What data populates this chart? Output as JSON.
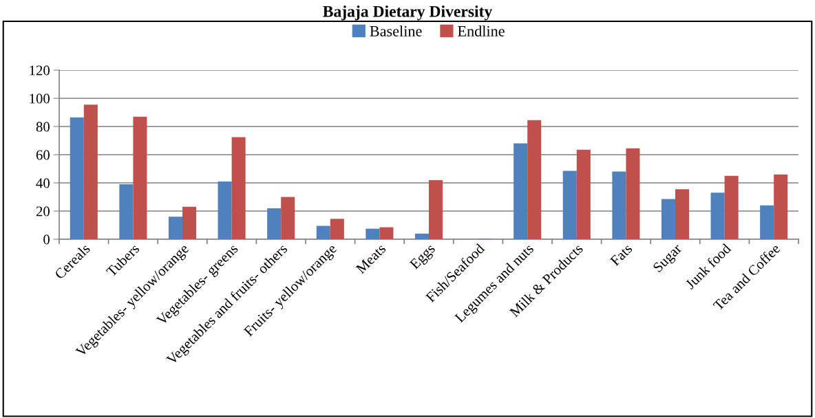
{
  "chart_data": {
    "type": "bar",
    "title": "Bajaja Dietary Diversity",
    "categories": [
      "Cereals",
      "Tubers",
      "Vegetables- yellow/orange",
      "Vegetables- greens",
      "Vegetables and fruits- others",
      "Fruits- yellow/orange",
      "Meats",
      "Eggs",
      "Fish/Seafood",
      "Legumes and nuts",
      "Milk & Products",
      "Fats",
      "Sugar",
      "Junk food",
      "Tea and Coffee"
    ],
    "series": [
      {
        "name": "Baseline",
        "color": "#4f81bd",
        "values": [
          86.5,
          39,
          16,
          41,
          22,
          9.5,
          7.5,
          4,
          0,
          68,
          48.5,
          48,
          28.5,
          33,
          24
        ]
      },
      {
        "name": "Endline",
        "color": "#c0504d",
        "values": [
          95.5,
          87,
          23,
          72.5,
          30,
          14.5,
          8.5,
          42,
          0.5,
          84.5,
          63.5,
          64.5,
          35.5,
          45,
          46
        ]
      }
    ],
    "ylim": [
      0,
      120
    ],
    "yticks": [
      0,
      20,
      40,
      60,
      80,
      100,
      120
    ],
    "grid": "y",
    "legend": "top"
  }
}
